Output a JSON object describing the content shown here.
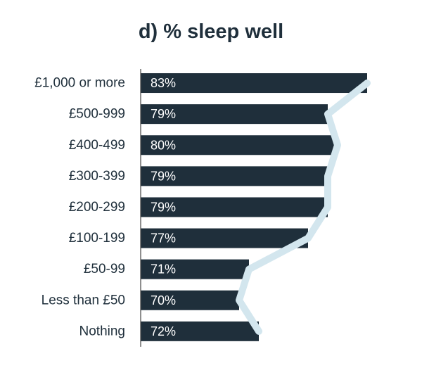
{
  "chart_data": {
    "type": "bar",
    "orientation": "horizontal",
    "title": "d) % sleep well",
    "categories": [
      "£1,000 or more",
      "£500-999",
      "£400-499",
      "£300-399",
      "£200-299",
      "£100-199",
      "£50-99",
      "Less than £50",
      "Nothing"
    ],
    "values": [
      83,
      79,
      80,
      79,
      79,
      77,
      71,
      70,
      72
    ],
    "value_labels": [
      "83%",
      "79%",
      "80%",
      "79%",
      "79%",
      "77%",
      "71%",
      "70%",
      "72%"
    ],
    "color": "#1f2f3b",
    "line_color": "#d3e6ee",
    "xlim": [
      60,
      84
    ]
  }
}
